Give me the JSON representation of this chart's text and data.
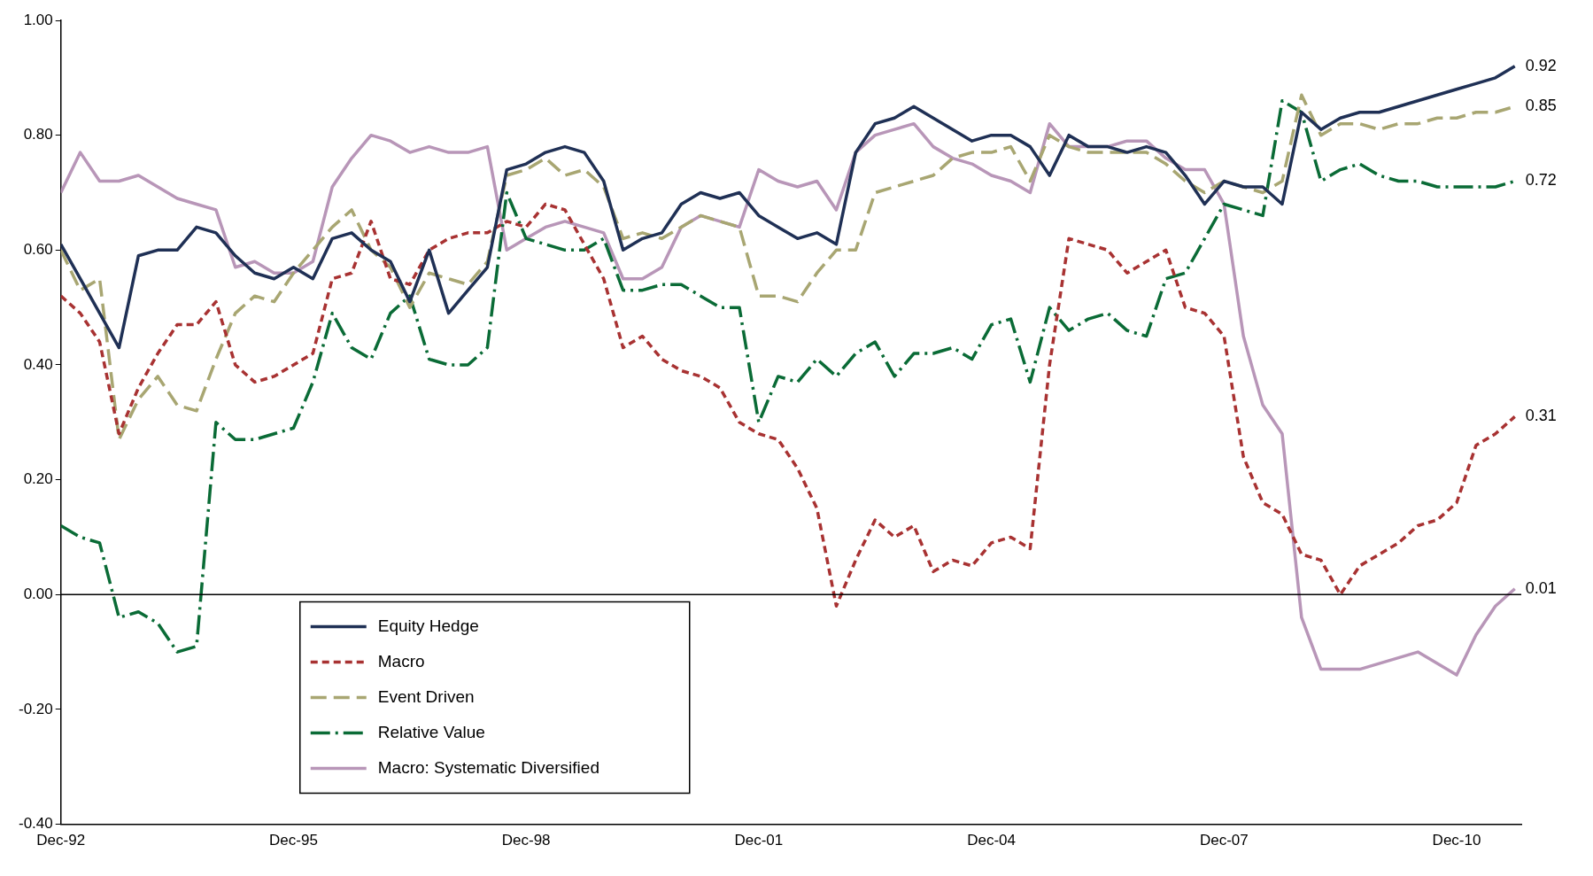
{
  "chart_data": {
    "type": "line",
    "x": [
      "1992-12",
      "1993-03",
      "1993-06",
      "1993-09",
      "1993-12",
      "1994-03",
      "1994-06",
      "1994-09",
      "1994-12",
      "1995-03",
      "1995-06",
      "1995-09",
      "1995-12",
      "1996-03",
      "1996-06",
      "1996-09",
      "1996-12",
      "1997-03",
      "1997-06",
      "1997-09",
      "1997-12",
      "1998-03",
      "1998-06",
      "1998-09",
      "1998-12",
      "1999-03",
      "1999-06",
      "1999-09",
      "1999-12",
      "2000-03",
      "2000-06",
      "2000-09",
      "2000-12",
      "2001-03",
      "2001-06",
      "2001-09",
      "2001-12",
      "2002-03",
      "2002-06",
      "2002-09",
      "2002-12",
      "2003-03",
      "2003-06",
      "2003-09",
      "2003-12",
      "2004-03",
      "2004-06",
      "2004-09",
      "2004-12",
      "2005-03",
      "2005-06",
      "2005-09",
      "2005-12",
      "2006-03",
      "2006-06",
      "2006-09",
      "2006-12",
      "2007-03",
      "2007-06",
      "2007-09",
      "2007-12",
      "2008-03",
      "2008-06",
      "2008-09",
      "2008-12",
      "2009-03",
      "2009-06",
      "2009-09",
      "2009-12",
      "2010-03",
      "2010-06",
      "2010-09",
      "2010-12",
      "2011-03",
      "2011-06",
      "2011-09"
    ],
    "series": [
      {
        "name": "Equity Hedge",
        "color": "#1f3055",
        "line_style": "solid",
        "values": [
          0.61,
          0.55,
          0.49,
          0.43,
          0.59,
          0.6,
          0.6,
          0.64,
          0.63,
          0.59,
          0.56,
          0.55,
          0.57,
          0.55,
          0.62,
          0.63,
          0.6,
          0.58,
          0.51,
          0.6,
          0.49,
          0.53,
          0.57,
          0.74,
          0.75,
          0.77,
          0.78,
          0.77,
          0.72,
          0.6,
          0.62,
          0.63,
          0.68,
          0.7,
          0.69,
          0.7,
          0.66,
          0.64,
          0.62,
          0.63,
          0.61,
          0.77,
          0.82,
          0.83,
          0.85,
          0.83,
          0.81,
          0.79,
          0.8,
          0.8,
          0.78,
          0.73,
          0.8,
          0.78,
          0.78,
          0.77,
          0.78,
          0.77,
          0.73,
          0.68,
          0.72,
          0.71,
          0.71,
          0.68,
          0.84,
          0.81,
          0.83,
          0.84,
          0.84,
          0.85,
          0.86,
          0.87,
          0.88,
          0.89,
          0.9,
          0.92
        ]
      },
      {
        "name": "Macro",
        "color": "#a83232",
        "line_style": "dashed",
        "values": [
          0.52,
          0.49,
          0.44,
          0.28,
          0.36,
          0.42,
          0.47,
          0.47,
          0.51,
          0.4,
          0.37,
          0.38,
          0.4,
          0.42,
          0.55,
          0.56,
          0.65,
          0.55,
          0.54,
          0.6,
          0.62,
          0.63,
          0.63,
          0.65,
          0.64,
          0.68,
          0.67,
          0.61,
          0.55,
          0.43,
          0.45,
          0.41,
          0.39,
          0.38,
          0.36,
          0.3,
          0.28,
          0.27,
          0.22,
          0.15,
          -0.02,
          0.06,
          0.13,
          0.1,
          0.12,
          0.04,
          0.06,
          0.05,
          0.09,
          0.1,
          0.08,
          0.4,
          0.62,
          0.61,
          0.6,
          0.56,
          0.58,
          0.6,
          0.5,
          0.49,
          0.45,
          0.24,
          0.16,
          0.14,
          0.07,
          0.06,
          0.0,
          0.05,
          0.07,
          0.09,
          0.12,
          0.13,
          0.16,
          0.26,
          0.28,
          0.31
        ]
      },
      {
        "name": "Event Driven",
        "color": "#a8a672",
        "line_style": "dashed",
        "values": [
          0.6,
          0.53,
          0.55,
          0.27,
          0.34,
          0.38,
          0.33,
          0.32,
          0.41,
          0.49,
          0.52,
          0.51,
          0.56,
          0.6,
          0.64,
          0.67,
          0.6,
          0.57,
          0.5,
          0.56,
          0.55,
          0.54,
          0.58,
          0.73,
          0.74,
          0.76,
          0.73,
          0.74,
          0.71,
          0.62,
          0.63,
          0.62,
          0.64,
          0.66,
          0.65,
          0.64,
          0.52,
          0.52,
          0.51,
          0.56,
          0.6,
          0.6,
          0.7,
          0.71,
          0.72,
          0.73,
          0.76,
          0.77,
          0.77,
          0.78,
          0.72,
          0.8,
          0.78,
          0.77,
          0.77,
          0.77,
          0.77,
          0.75,
          0.72,
          0.7,
          0.72,
          0.71,
          0.7,
          0.72,
          0.87,
          0.8,
          0.82,
          0.82,
          0.81,
          0.82,
          0.82,
          0.83,
          0.83,
          0.84,
          0.84,
          0.85
        ]
      },
      {
        "name": "Relative Value",
        "color": "#0a6b36",
        "line_style": "dashed",
        "values": [
          0.12,
          0.1,
          0.09,
          -0.04,
          -0.03,
          -0.05,
          -0.1,
          -0.09,
          0.3,
          0.27,
          0.27,
          0.28,
          0.29,
          0.37,
          0.49,
          0.43,
          0.41,
          0.49,
          0.52,
          0.41,
          0.4,
          0.4,
          0.43,
          0.7,
          0.62,
          0.61,
          0.6,
          0.6,
          0.62,
          0.53,
          0.53,
          0.54,
          0.54,
          0.52,
          0.5,
          0.5,
          0.3,
          0.38,
          0.37,
          0.41,
          0.38,
          0.42,
          0.44,
          0.38,
          0.42,
          0.42,
          0.43,
          0.41,
          0.47,
          0.48,
          0.37,
          0.5,
          0.46,
          0.48,
          0.49,
          0.46,
          0.45,
          0.55,
          0.56,
          0.62,
          0.68,
          0.67,
          0.66,
          0.86,
          0.84,
          0.72,
          0.74,
          0.75,
          0.73,
          0.72,
          0.72,
          0.71,
          0.71,
          0.71,
          0.71,
          0.72
        ]
      },
      {
        "name": "Macro: Systematic Diversified",
        "color": "#b896b8",
        "line_style": "solid",
        "values": [
          0.7,
          0.77,
          0.72,
          0.72,
          0.73,
          0.71,
          0.69,
          0.68,
          0.67,
          0.57,
          0.58,
          0.56,
          0.56,
          0.58,
          0.71,
          0.76,
          0.8,
          0.79,
          0.77,
          0.78,
          0.77,
          0.77,
          0.78,
          0.6,
          0.62,
          0.64,
          0.65,
          0.64,
          0.63,
          0.55,
          0.55,
          0.57,
          0.64,
          0.66,
          0.65,
          0.64,
          0.74,
          0.72,
          0.71,
          0.72,
          0.67,
          0.77,
          0.8,
          0.81,
          0.82,
          0.78,
          0.76,
          0.75,
          0.73,
          0.72,
          0.7,
          0.82,
          0.78,
          0.78,
          0.78,
          0.79,
          0.79,
          0.76,
          0.74,
          0.74,
          0.68,
          0.45,
          0.33,
          0.28,
          -0.04,
          -0.13,
          -0.13,
          -0.13,
          -0.12,
          -0.11,
          -0.1,
          -0.12,
          -0.14,
          -0.07,
          -0.02,
          0.01
        ]
      }
    ],
    "xlim": [
      "1992-12",
      "2011-10"
    ],
    "xticks": [
      {
        "value": "1992-12",
        "label": "Dec-92"
      },
      {
        "value": "1995-12",
        "label": "Dec-95"
      },
      {
        "value": "1998-12",
        "label": "Dec-98"
      },
      {
        "value": "2001-12",
        "label": "Dec-01"
      },
      {
        "value": "2004-12",
        "label": "Dec-04"
      },
      {
        "value": "2007-12",
        "label": "Dec-07"
      },
      {
        "value": "2010-12",
        "label": "Dec-10"
      }
    ],
    "ylim": [
      -0.4,
      1.0
    ],
    "yticks": [
      {
        "value": -0.4,
        "label": "-0.40"
      },
      {
        "value": -0.2,
        "label": "-0.20"
      },
      {
        "value": 0,
        "label": "0.00"
      },
      {
        "value": 0.2,
        "label": "0.20"
      },
      {
        "value": 0.4,
        "label": "0.40"
      },
      {
        "value": 0.6,
        "label": "0.60"
      },
      {
        "value": 0.8,
        "label": "0.80"
      },
      {
        "value": 1.0,
        "label": "1.00"
      }
    ],
    "ref_lines": [
      {
        "axis": "y",
        "value": 0,
        "color": "#000000"
      }
    ],
    "annotations": [
      {
        "text": "0.92",
        "x": "2011-09",
        "y": 0.92
      },
      {
        "text": "0.85",
        "x": "2011-09",
        "y": 0.85
      },
      {
        "text": "0.72",
        "x": "2011-09",
        "y": 0.72
      },
      {
        "text": "0.31",
        "x": "2011-09",
        "y": 0.31
      },
      {
        "text": "0.01",
        "x": "2011-09",
        "y": 0.01
      }
    ],
    "grid": false,
    "legend": "bottom left",
    "marker": "none"
  }
}
